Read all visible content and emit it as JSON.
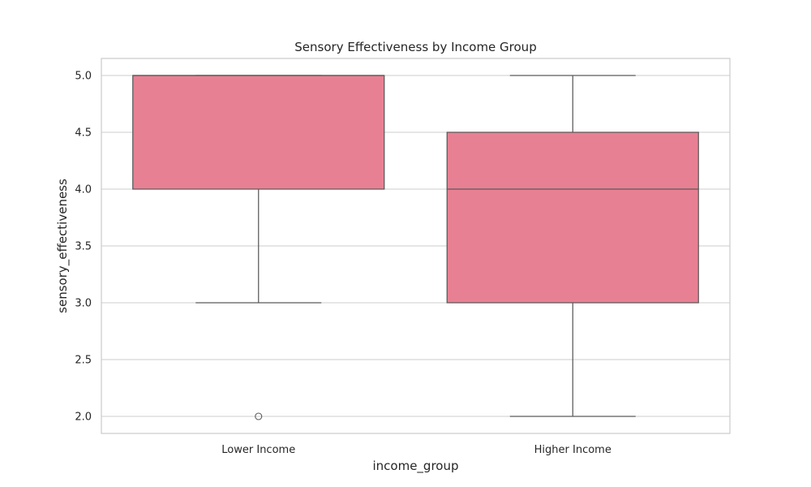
{
  "chart_data": {
    "type": "box",
    "title": "Sensory Effectiveness by Income Group",
    "xlabel": "income_group",
    "ylabel": "sensory_effectiveness",
    "categories": [
      "Lower Income",
      "Higher Income"
    ],
    "ylim": [
      1.85,
      5.15
    ],
    "yticks": [
      "2.0",
      "2.5",
      "3.0",
      "3.5",
      "4.0",
      "4.5",
      "5.0"
    ],
    "ytick_values": [
      2.0,
      2.5,
      3.0,
      3.5,
      4.0,
      4.5,
      5.0
    ],
    "grid": true,
    "boxes": [
      {
        "category": "Lower Income",
        "whisker_low": 3.0,
        "q1": 4.0,
        "median": 5.0,
        "q3": 5.0,
        "whisker_high": 5.0,
        "outliers": [
          2.0
        ]
      },
      {
        "category": "Higher Income",
        "whisker_low": 2.0,
        "q1": 3.0,
        "median": 4.0,
        "q3": 4.5,
        "whisker_high": 5.0,
        "outliers": []
      }
    ],
    "colors": {
      "box_fill": "#e88093",
      "line": "#5a5a5a",
      "grid": "#cccccc",
      "frame": "#cccccc"
    }
  }
}
